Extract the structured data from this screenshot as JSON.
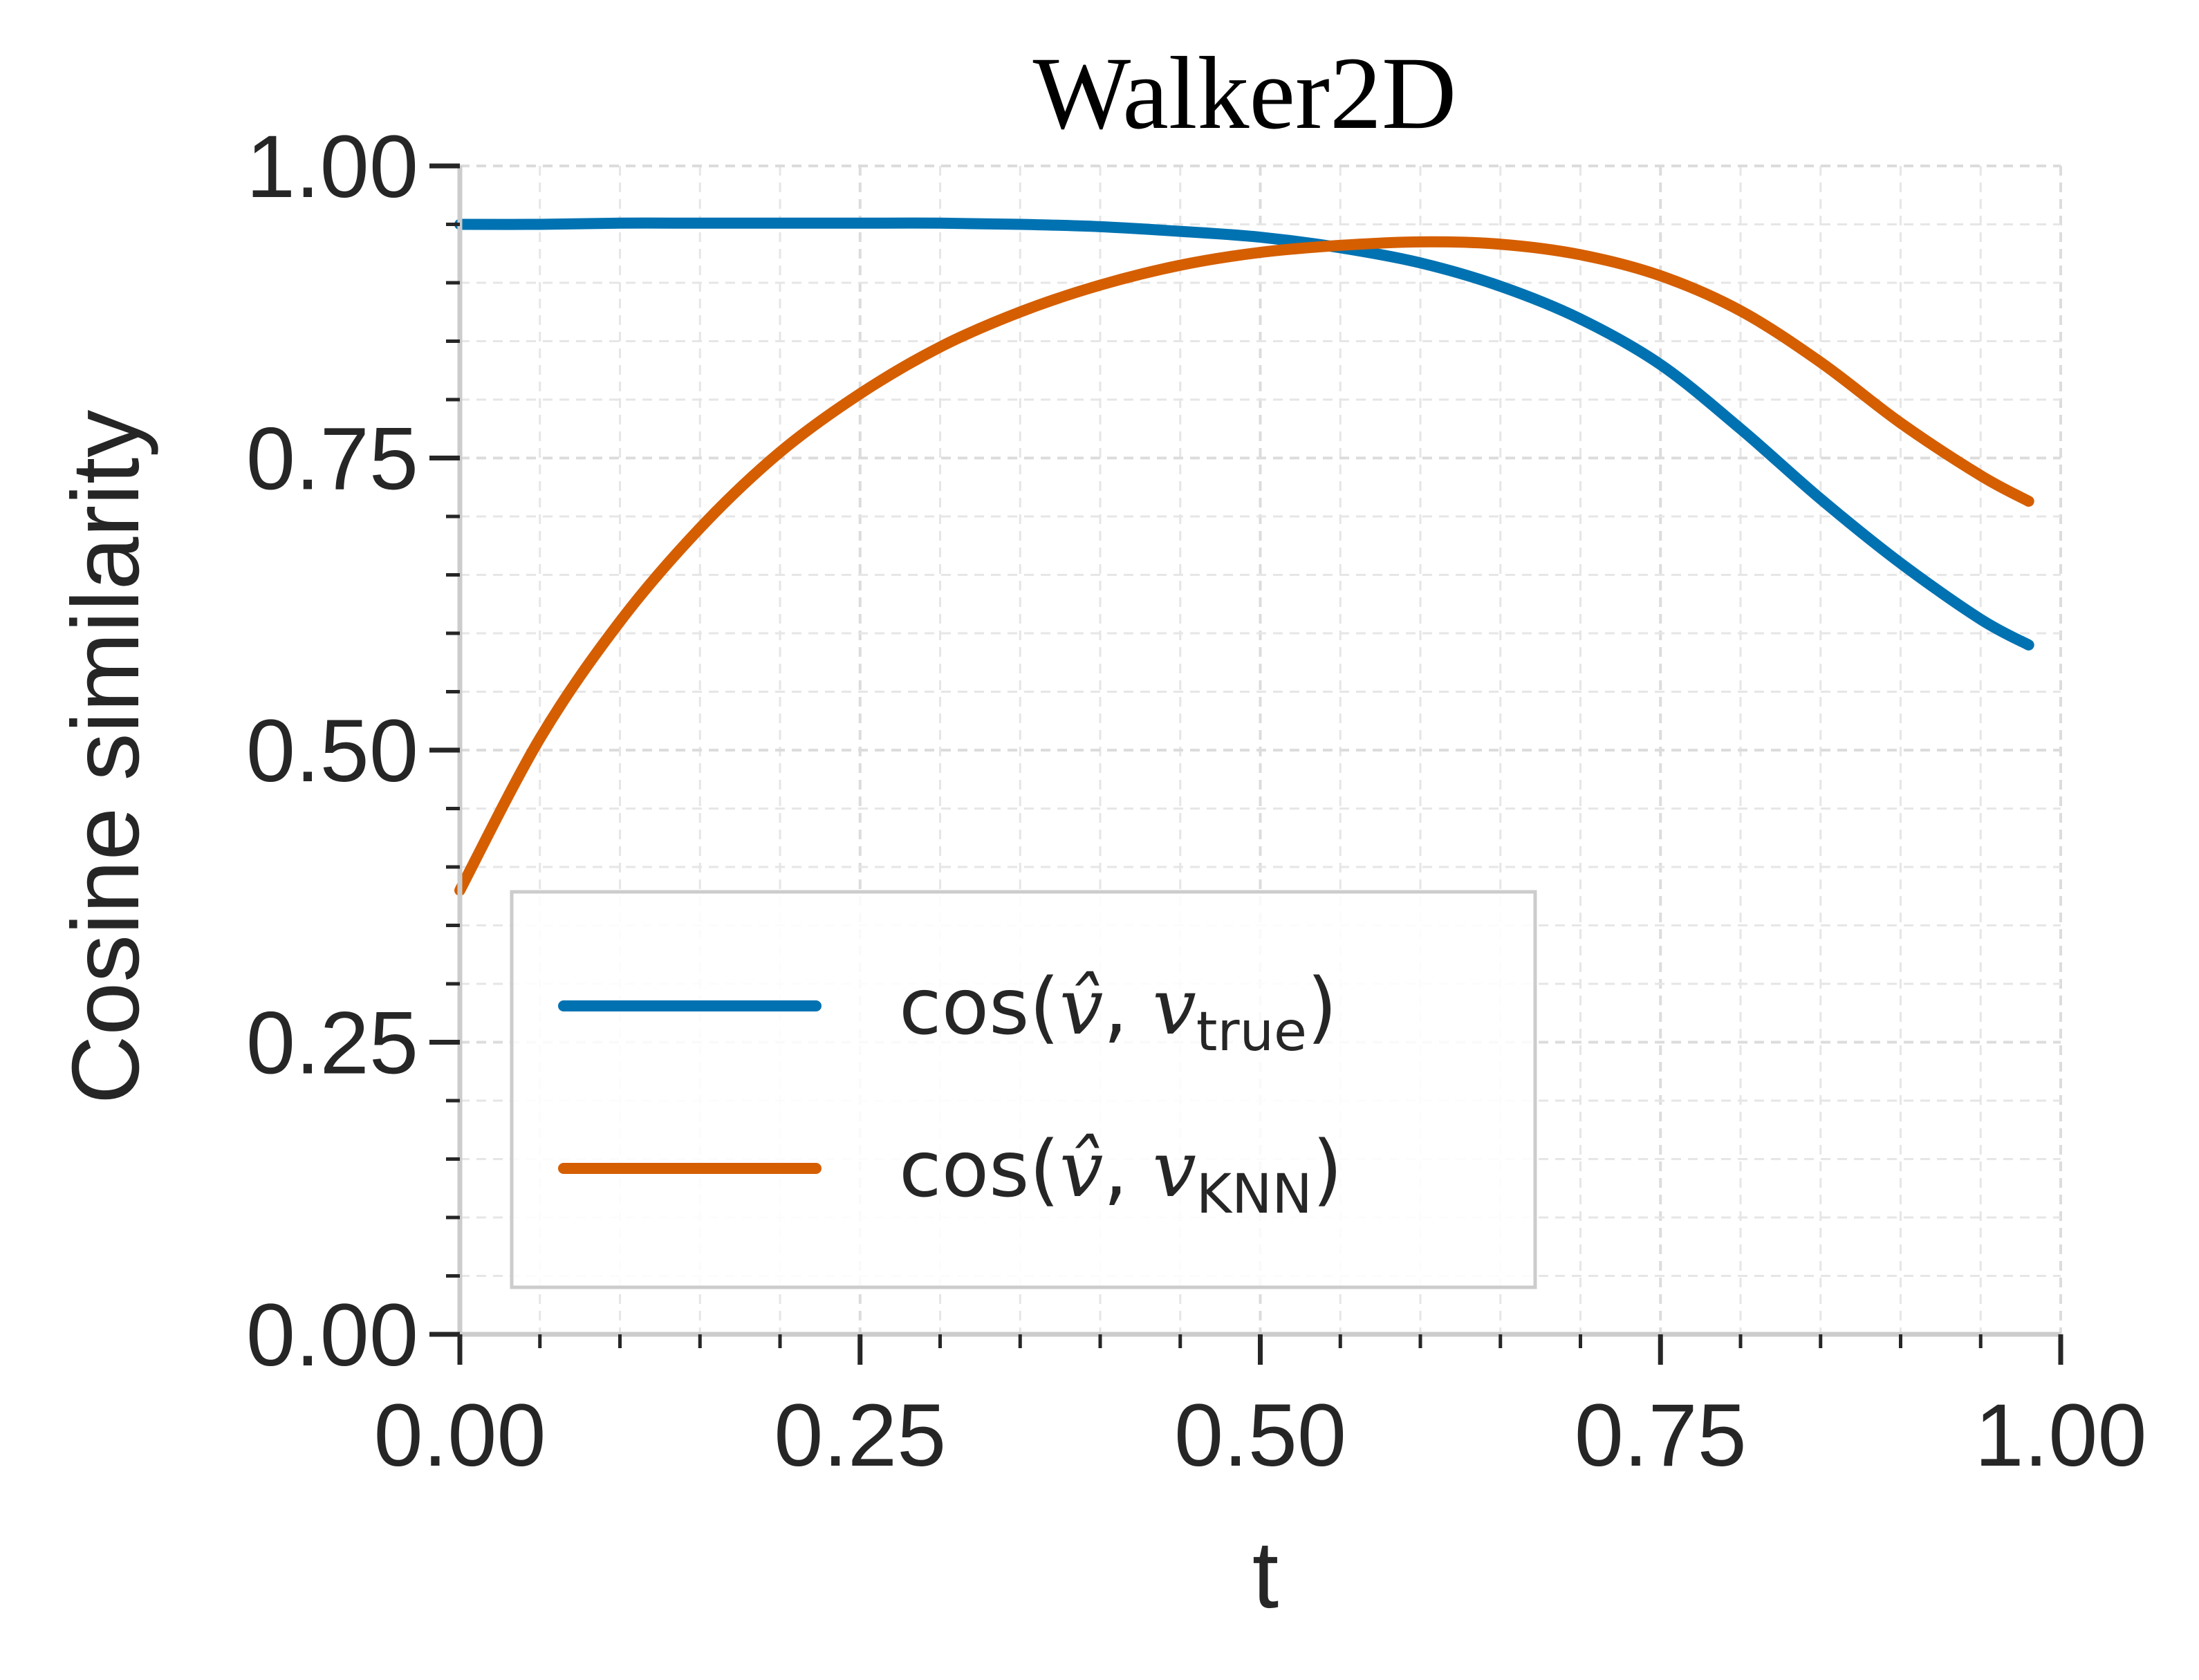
{
  "chart_data": {
    "type": "line",
    "title": "Walker2D",
    "xlabel": "t",
    "ylabel": "Cosine similarity",
    "xlim": [
      0,
      1
    ],
    "ylim": [
      0,
      1
    ],
    "xticks": [
      "0.00",
      "0.25",
      "0.50",
      "0.75",
      "1.00"
    ],
    "yticks": [
      "0.00",
      "0.25",
      "0.50",
      "0.75",
      "1.00"
    ],
    "grid": true,
    "legend_position": "lower-left",
    "x": [
      0.0,
      0.05,
      0.1,
      0.15,
      0.2,
      0.25,
      0.3,
      0.35,
      0.4,
      0.45,
      0.5,
      0.55,
      0.6,
      0.65,
      0.7,
      0.75,
      0.8,
      0.85,
      0.9,
      0.95,
      0.98
    ],
    "series": [
      {
        "name": "cos(v̂, v_true)",
        "legend": {
          "prefix": "cos(",
          "hat": "v̂",
          "sep": ", ",
          "var": "v",
          "sub": "true",
          "suffix": ")"
        },
        "color": "#0072B2",
        "values": [
          0.95,
          0.95,
          0.951,
          0.951,
          0.951,
          0.951,
          0.951,
          0.95,
          0.948,
          0.944,
          0.939,
          0.93,
          0.917,
          0.897,
          0.869,
          0.83,
          0.775,
          0.715,
          0.66,
          0.612,
          0.59
        ]
      },
      {
        "name": "cos(v̂, v_KNN)",
        "legend": {
          "prefix": "cos(",
          "hat": "v̂",
          "sep": ", ",
          "var": "v",
          "sub": "KNN",
          "suffix": ")"
        },
        "color": "#D55E00",
        "values": [
          0.38,
          0.51,
          0.61,
          0.69,
          0.755,
          0.805,
          0.845,
          0.875,
          0.898,
          0.915,
          0.926,
          0.932,
          0.935,
          0.933,
          0.924,
          0.906,
          0.876,
          0.832,
          0.78,
          0.735,
          0.713
        ]
      }
    ]
  }
}
